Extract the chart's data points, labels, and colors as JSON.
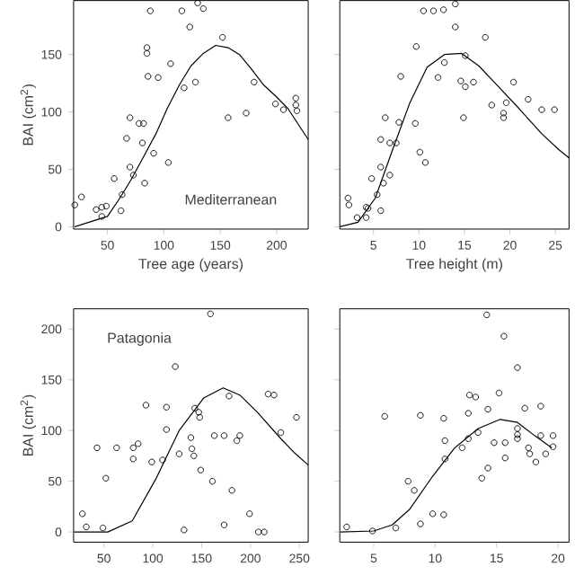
{
  "chart_data": [
    {
      "type": "scatter",
      "xlabel": "Tree age (years)",
      "ylabel": "BAI (cm$^{2}$)",
      "xlim": [
        20,
        228
      ],
      "ylim": [
        -2,
        197
      ],
      "xticks": [
        50,
        100,
        150,
        200
      ],
      "yticks": [
        0,
        50,
        100,
        150
      ],
      "marker": "circle",
      "annotations": [
        "Mediterranean"
      ],
      "series": [
        {
          "type": "scatter",
          "color": "#000000",
          "x": [
            88,
            116,
            130,
            135,
            123,
            85,
            85,
            152,
            106,
            86,
            95,
            118,
            128,
            180,
            157,
            173,
            199,
            206,
            70,
            78,
            82,
            67,
            81,
            91,
            104,
            70,
            73,
            83,
            56,
            63,
            62,
            45,
            49,
            40,
            45,
            27,
            21,
            217,
            218,
            217
          ],
          "values": [
            188,
            188,
            195,
            190,
            174,
            156,
            151,
            165,
            142,
            131,
            130,
            121,
            126,
            126,
            95,
            99,
            107,
            102,
            95,
            90,
            90,
            77,
            73,
            64,
            56,
            52,
            45,
            38,
            42,
            28,
            14,
            17,
            18,
            15,
            9,
            26,
            19,
            112,
            101,
            106
          ]
        },
        {
          "type": "line",
          "color": "#000000",
          "marker": "none",
          "x": [
            21,
            50,
            61,
            71,
            82,
            93,
            103,
            114,
            124,
            135,
            146,
            157,
            167,
            178,
            188,
            199,
            210,
            228
          ],
          "values": [
            0,
            9,
            25,
            41,
            61,
            81,
            103,
            124,
            140,
            151,
            158,
            156,
            150,
            137,
            124,
            114,
            103,
            76
          ]
        }
      ]
    },
    {
      "type": "scatter",
      "xlabel": "Tree height (m)",
      "xlim": [
        1.3,
        26.5
      ],
      "ylim": [
        -2,
        197
      ],
      "xticks": [
        5,
        10,
        15,
        20,
        25
      ],
      "yticks": [
        0,
        50,
        100,
        150
      ],
      "tick_labels": "x",
      "marker": "circle",
      "series": [
        {
          "type": "scatter",
          "color": "#000000",
          "x": [
            10.5,
            11.6,
            12.7,
            14,
            14,
            17.3,
            9.7,
            8.0,
            12.1,
            12.8,
            15.1,
            14.6,
            15.1,
            16,
            20.4,
            18,
            19.6,
            19.3,
            19.3,
            22,
            23.5,
            24.9,
            14.9,
            6.3,
            7.8,
            6.8,
            7.5,
            9.6,
            5.8,
            10.1,
            10.7,
            5.8,
            6.8,
            4.8,
            6.1,
            5.4,
            5.8,
            4.2,
            4.4,
            2.2,
            2.3,
            3.2,
            4.2
          ],
          "values": [
            188,
            188,
            189,
            194,
            174,
            165,
            157,
            131,
            130,
            143,
            149,
            127,
            122,
            126,
            126,
            106,
            108,
            99,
            95,
            111,
            102,
            102,
            95,
            95,
            91,
            73,
            73,
            90,
            76,
            65,
            56,
            52,
            45,
            42,
            38,
            28,
            14,
            17,
            16,
            25,
            19,
            8,
            8
          ]
        },
        {
          "type": "line",
          "color": "#000000",
          "marker": "none",
          "x": [
            1.3,
            3.3,
            5.2,
            7.1,
            9,
            10.9,
            12.8,
            14.7,
            16.6,
            18.5,
            21,
            23.5,
            25.4,
            26.5
          ],
          "values": [
            0,
            4,
            25,
            67,
            108,
            139,
            150,
            151,
            140,
            124,
            103,
            81,
            67,
            60
          ]
        }
      ]
    },
    {
      "type": "scatter",
      "ylabel": "BAI (cm$^{2}$)",
      "xlim": [
        19,
        259
      ],
      "ylim": [
        -10,
        220
      ],
      "xticks": [
        50,
        100,
        150,
        200,
        250
      ],
      "yticks": [
        0,
        50,
        100,
        150,
        200
      ],
      "marker": "circle",
      "annotations": [
        "Patagonia"
      ],
      "series": [
        {
          "type": "scatter",
          "color": "#000000",
          "x": [
            159,
            123,
            93,
            114,
            143,
            147,
            148,
            114,
            139,
            163,
            173,
            189,
            186,
            178,
            218,
            224,
            231,
            140,
            142,
            127,
            110,
            99,
            85,
            80,
            80,
            63,
            43,
            52,
            149,
            161,
            181,
            199,
            208,
            214,
            173,
            132,
            49,
            32,
            28,
            247
          ],
          "values": [
            215,
            163,
            125,
            123,
            122,
            118,
            113,
            101,
            93,
            95,
            95,
            95,
            90,
            134,
            136,
            135,
            98,
            82,
            75,
            77,
            71,
            69,
            87,
            83,
            72,
            83,
            83,
            53,
            61,
            50,
            41,
            18,
            0,
            0,
            7,
            2,
            4,
            5,
            18,
            113
          ]
        },
        {
          "type": "line",
          "color": "#000000",
          "marker": "none",
          "x": [
            19.5,
            54,
            79,
            103,
            127,
            152,
            172,
            189,
            207,
            231,
            245,
            259
          ],
          "values": [
            0,
            0,
            11,
            52,
            100,
            132,
            142,
            135,
            118,
            92,
            78,
            66
          ]
        }
      ]
    },
    {
      "type": "scatter",
      "xlim": [
        2.24,
        20.9
      ],
      "ylim": [
        -10,
        220
      ],
      "xticks": [
        5,
        10,
        15,
        20
      ],
      "yticks": [
        0,
        50,
        100,
        150,
        200
      ],
      "tick_labels": "x",
      "marker": "circle",
      "series": [
        {
          "type": "scatter",
          "color": "#000000",
          "x": [
            2.8,
            4.9,
            6.8,
            8.8,
            9.8,
            10.7,
            7.8,
            8.3,
            5.9,
            8.8,
            10.7,
            10.8,
            10.8,
            12.2,
            12.7,
            12.7,
            12.8,
            13.3,
            13.5,
            14.3,
            14.2,
            15.6,
            15.2,
            14.8,
            13.8,
            14.3,
            15.7,
            15.7,
            16.7,
            16.7,
            16.7,
            16.7,
            17.3,
            17.6,
            17.7,
            18.2,
            18.6,
            18.6,
            19,
            19.6,
            19.6
          ],
          "values": [
            5,
            1,
            4,
            8,
            18,
            17,
            50,
            41,
            114,
            115,
            112,
            90,
            72,
            83,
            92,
            117,
            135,
            133,
            98,
            121,
            214,
            193,
            137,
            88,
            53,
            63,
            88,
            73,
            162,
            102,
            96,
            92,
            122,
            83,
            77,
            69,
            124,
            95,
            77,
            95,
            84
          ]
        },
        {
          "type": "line",
          "color": "#000000",
          "marker": "none",
          "x": [
            2.3,
            5,
            6.5,
            7.9,
            9.8,
            11.6,
            13.5,
            15.3,
            16.7,
            18.1,
            19.5
          ],
          "values": [
            0,
            1,
            7,
            22,
            55,
            83,
            102,
            111,
            108,
            95,
            83
          ]
        }
      ]
    }
  ]
}
